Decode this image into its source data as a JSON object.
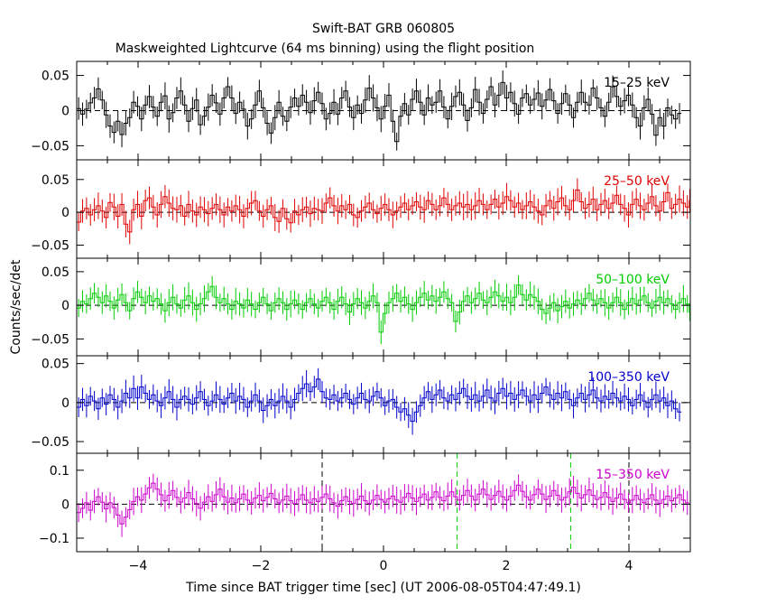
{
  "title": "Swift-BAT GRB 060805",
  "subtitle": "Maskweighted Lightcurve (64 ms binning) using the flight position",
  "xlabel": "Time since BAT trigger time [sec] (UT 2006-08-05T04:47:49.1)",
  "ylabel": "Counts/sec/det",
  "chart_data": {
    "type": "line",
    "title": "Swift-BAT GRB 060805",
    "subtitle": "Maskweighted Lightcurve (64 ms binning) using the flight position",
    "xlabel": "Time since BAT trigger time [sec] (UT 2006-08-05T04:47:49.1)",
    "ylabel": "Counts/sec/det",
    "xlim": [
      -5,
      5
    ],
    "x_ticks": [
      "−4",
      "−2",
      "0",
      "2",
      "4"
    ],
    "x_tick_values": [
      -4,
      -2,
      0,
      2,
      4
    ],
    "bin_width_s": 0.064,
    "panels": [
      {
        "name": "15–25 keV",
        "color": "#000000",
        "ylim": [
          -0.07,
          0.07
        ],
        "y_ticks": [
          "0.05",
          "0",
          "−0.05"
        ],
        "y_tick_values": [
          0.05,
          0,
          -0.05
        ],
        "vlines": [],
        "t_start": -5.0,
        "values": [
          0.003,
          -0.005,
          0.002,
          0.011,
          0.018,
          0.031,
          0.015,
          -0.006,
          -0.022,
          -0.031,
          -0.015,
          -0.034,
          -0.018,
          -0.01,
          0.012,
          0.006,
          -0.012,
          0.008,
          0.02,
          0.005,
          -0.008,
          0.012,
          0.021,
          -0.012,
          -0.003,
          0.018,
          0.028,
          0.008,
          -0.015,
          0.003,
          0.015,
          -0.02,
          -0.008,
          0.005,
          0.022,
          0.011,
          -0.005,
          0.018,
          0.034,
          0.018,
          -0.004,
          0.012,
          0.002,
          -0.022,
          -0.012,
          0.008,
          0.028,
          0.004,
          -0.018,
          -0.032,
          -0.01,
          0.012,
          -0.008,
          -0.015,
          0.005,
          0.018,
          0.006,
          0.022,
          0.012,
          -0.003,
          0.014,
          0.026,
          0.01,
          -0.012,
          -0.004,
          0.012,
          -0.005,
          0.018,
          0.028,
          0.005,
          -0.01,
          0.008,
          -0.004,
          0.015,
          0.032,
          0.018,
          0.004,
          -0.012,
          0.006,
          0.022,
          -0.015,
          -0.044,
          -0.008,
          0.01,
          -0.006,
          0.016,
          0.028,
          0.012,
          -0.006,
          0.018,
          0.008,
          0.012,
          0.028,
          0.005,
          -0.012,
          0.006,
          0.02,
          0.026,
          0.008,
          -0.014,
          0.004,
          0.03,
          0.012,
          -0.004,
          0.016,
          0.034,
          0.008,
          0.022,
          0.04,
          0.018,
          0.026,
          0.01,
          -0.005,
          0.018,
          0.024,
          0.008,
          0.016,
          0.025,
          0.006,
          0.015,
          0.03,
          0.014,
          -0.004,
          0.01,
          0.024,
          0.008,
          -0.01,
          0.012,
          0.026,
          0.012,
          0.008,
          0.032,
          0.018,
          0.004,
          -0.008,
          0.012,
          0.034,
          0.02,
          0.006,
          0.014,
          0.022,
          0.008,
          -0.01,
          -0.022,
          0.004,
          0.016,
          -0.005,
          -0.035,
          -0.01,
          -0.022,
          0.004,
          -0.006,
          -0.012,
          -0.004
        ]
      },
      {
        "name": "25–50 keV",
        "color": "#e00000",
        "ylim": [
          -0.07,
          0.08
        ],
        "y_ticks": [
          "0.05",
          "0",
          "−0.05"
        ],
        "y_tick_values": [
          0.05,
          0,
          -0.05
        ],
        "vlines": [],
        "t_start": -5.0,
        "values": [
          -0.015,
          0.002,
          0.006,
          -0.004,
          0.004,
          0.01,
          0.002,
          -0.008,
          0.015,
          0.008,
          -0.006,
          0.012,
          -0.018,
          -0.03,
          0.004,
          0.012,
          -0.006,
          0.018,
          0.022,
          0.008,
          -0.004,
          0.012,
          0.024,
          0.014,
          0.006,
          0.004,
          0.01,
          -0.006,
          0.012,
          0.002,
          -0.004,
          0.008,
          0.004,
          -0.002,
          0.006,
          0.012,
          0.004,
          -0.004,
          0.008,
          0.002,
          0.01,
          0.004,
          -0.006,
          0.006,
          0.014,
          0.018,
          0.002,
          -0.006,
          0.004,
          0.01,
          -0.008,
          -0.014,
          0.006,
          -0.01,
          -0.016,
          0.002,
          -0.004,
          0.004,
          0.008,
          -0.002,
          0.006,
          0.004,
          0.002,
          0.014,
          0.022,
          0.01,
          0.002,
          0.01,
          0.004,
          0.012,
          -0.004,
          -0.008,
          0.002,
          0.008,
          0.014,
          0.004,
          -0.002,
          0.006,
          0.012,
          0.004,
          -0.004,
          0.002,
          0.008,
          0.014,
          0.004,
          0.01,
          0.016,
          0.008,
          0.004,
          0.018,
          0.012,
          0.004,
          0.01,
          0.022,
          0.012,
          0.004,
          0.01,
          0.014,
          0.008,
          0.012,
          0.004,
          0.01,
          0.018,
          0.012,
          0.004,
          0.012,
          0.02,
          0.008,
          0.014,
          0.024,
          0.018,
          0.008,
          0.014,
          0.004,
          0.01,
          0.016,
          0.008,
          0.002,
          -0.004,
          0.01,
          0.018,
          0.006,
          0.016,
          0.022,
          0.01,
          0.004,
          0.018,
          0.034,
          0.016,
          0.006,
          0.012,
          0.02,
          0.004,
          0.012,
          0.018,
          0.006,
          0.014,
          0.026,
          0.012,
          0.006,
          -0.004,
          0.012,
          0.02,
          0.01,
          0.004,
          0.014,
          0.024,
          0.01,
          0.002,
          0.016,
          0.03,
          0.006,
          0.012,
          0.02,
          0.014,
          0.008,
          0.018
        ]
      },
      {
        "name": "50–100 keV",
        "color": "#00cc00",
        "ylim": [
          -0.075,
          0.07
        ],
        "y_ticks": [
          "0.05",
          "0",
          "−0.05"
        ],
        "y_tick_values": [
          0.05,
          0,
          -0.05
        ],
        "vlines": [],
        "t_start": -5.0,
        "values": [
          -0.004,
          0.006,
          0.002,
          0.01,
          0.018,
          0.012,
          0.004,
          0.014,
          0.006,
          -0.004,
          0.008,
          0.016,
          0.004,
          -0.008,
          0.01,
          0.02,
          0.012,
          0.004,
          0.014,
          0.006,
          0.01,
          0.002,
          -0.008,
          0.004,
          0.012,
          0.002,
          -0.004,
          0.008,
          0.014,
          0.004,
          -0.006,
          0.002,
          0.01,
          0.02,
          0.028,
          0.012,
          0.004,
          0.01,
          0.002,
          -0.006,
          0.006,
          0.002,
          -0.004,
          0.008,
          0.002,
          -0.006,
          0.004,
          0.012,
          0.002,
          -0.008,
          0.004,
          0.01,
          0.004,
          -0.006,
          0.002,
          0.008,
          0.002,
          -0.006,
          0.004,
          0.01,
          0.002,
          -0.004,
          0.006,
          0.012,
          0.004,
          -0.006,
          0.006,
          0.012,
          0.002,
          -0.01,
          0.002,
          0.01,
          0.004,
          -0.004,
          0.006,
          0.014,
          0.004,
          -0.04,
          -0.012,
          0.004,
          0.01,
          0.018,
          0.006,
          0.012,
          0.002,
          -0.006,
          0.004,
          0.012,
          0.018,
          0.008,
          0.014,
          0.006,
          0.012,
          0.02,
          0.01,
          0.004,
          -0.024,
          -0.01,
          0.006,
          0.014,
          0.004,
          0.01,
          0.018,
          0.008,
          0.004,
          0.012,
          0.02,
          0.014,
          0.006,
          0.012,
          0.004,
          0.012,
          0.03,
          0.016,
          0.008,
          0.016,
          0.012,
          0.006,
          -0.006,
          -0.012,
          -0.004,
          0.004,
          -0.008,
          -0.002,
          0.006,
          -0.004,
          0.002,
          0.008,
          0.002,
          0.01,
          0.018,
          0.008,
          0.002,
          0.01,
          0.004,
          -0.004,
          0.004,
          0.012,
          0.004,
          -0.006,
          0.004,
          0.01,
          0.002,
          0.008,
          0.014,
          0.004,
          -0.004,
          0.006,
          0.012,
          0.004,
          0.01,
          0.002,
          -0.006,
          0.004,
          0.01,
          0.002,
          -0.01
        ]
      },
      {
        "name": "100–350 keV",
        "color": "#0000cc",
        "ylim": [
          -0.065,
          0.06
        ],
        "y_ticks": [
          "0.05",
          "0",
          "−0.05"
        ],
        "y_tick_values": [
          0.05,
          0,
          -0.05
        ],
        "vlines": [],
        "t_start": -5.0,
        "values": [
          -0.006,
          0.004,
          -0.004,
          0.008,
          0.002,
          -0.008,
          0.006,
          -0.002,
          0.01,
          0.004,
          -0.006,
          0.002,
          0.012,
          0.006,
          0.018,
          0.006,
          0.02,
          0.012,
          0.004,
          0.01,
          0.002,
          -0.004,
          0.006,
          0.014,
          0.004,
          -0.006,
          0.004,
          0.008,
          0.004,
          -0.002,
          0.006,
          0.014,
          0.004,
          -0.004,
          0.002,
          0.01,
          0.004,
          -0.002,
          0.006,
          0.012,
          0.002,
          0.008,
          0.004,
          -0.006,
          0.002,
          0.01,
          0.002,
          -0.01,
          -0.004,
          0.004,
          -0.004,
          0.002,
          0.008,
          0.002,
          -0.006,
          0.004,
          0.012,
          0.018,
          0.024,
          0.014,
          0.02,
          0.03,
          0.014,
          0.006,
          0.004,
          0.01,
          0.002,
          0.006,
          0.012,
          0.004,
          -0.002,
          0.006,
          0.012,
          0.004,
          0.002,
          0.008,
          0.014,
          0.006,
          -0.004,
          0.002,
          0.004,
          -0.006,
          -0.012,
          -0.008,
          -0.016,
          -0.024,
          -0.012,
          -0.004,
          0.006,
          0.014,
          0.004,
          0.01,
          0.016,
          0.006,
          0.002,
          0.01,
          0.004,
          0.012,
          0.018,
          0.008,
          0.004,
          0.01,
          0.002,
          0.008,
          0.016,
          0.006,
          0.002,
          0.012,
          0.018,
          0.008,
          0.012,
          0.004,
          0.01,
          0.016,
          0.008,
          0.002,
          0.01,
          0.004,
          0.012,
          0.02,
          0.01,
          0.004,
          0.012,
          0.006,
          0.014,
          0.004,
          -0.004,
          0.006,
          0.012,
          0.004,
          0.01,
          0.016,
          0.006,
          0.002,
          0.008,
          0.004,
          0.012,
          0.006,
          0.002,
          0.008,
          0.004,
          -0.004,
          0.004,
          0.01,
          0.002,
          -0.006,
          0.004,
          0.01,
          0.002,
          0.006,
          -0.004,
          0.002,
          -0.008,
          -0.012
        ]
      },
      {
        "name": "15–350 keV",
        "color": "#cc00cc",
        "ylim": [
          -0.14,
          0.15
        ],
        "y_ticks": [
          "0.1",
          "0",
          "−0.1"
        ],
        "y_tick_values": [
          0.1,
          0,
          -0.1
        ],
        "vlines": [
          {
            "t": -1.0,
            "color": "#000000"
          },
          {
            "t": 4.0,
            "color": "#000000"
          },
          {
            "t": 1.2,
            "color": "#00cc00"
          },
          {
            "t": 3.05,
            "color": "#00cc00"
          }
        ],
        "t_start": -5.0,
        "values": [
          -0.025,
          -0.012,
          0.004,
          -0.018,
          0.008,
          0.022,
          0.006,
          -0.014,
          0.004,
          -0.01,
          -0.032,
          -0.058,
          -0.038,
          -0.016,
          0.008,
          0.022,
          0.012,
          0.03,
          0.048,
          0.062,
          0.044,
          0.028,
          0.01,
          0.026,
          0.04,
          0.02,
          0.006,
          0.018,
          0.034,
          0.016,
          0.002,
          -0.012,
          0.006,
          0.022,
          0.008,
          0.028,
          0.044,
          0.022,
          0.006,
          0.018,
          0.004,
          0.016,
          0.03,
          0.012,
          0.004,
          0.018,
          0.026,
          0.01,
          0.02,
          0.032,
          0.016,
          0.004,
          0.012,
          0.024,
          0.01,
          0.002,
          0.014,
          0.028,
          0.012,
          0.004,
          0.016,
          0.008,
          0.02,
          0.03,
          0.016,
          0.004,
          -0.006,
          0.01,
          0.022,
          0.008,
          0.002,
          0.014,
          0.024,
          0.01,
          0.002,
          0.012,
          0.026,
          0.014,
          0.006,
          0.016,
          0.024,
          0.012,
          0.006,
          0.02,
          0.032,
          0.018,
          0.008,
          0.02,
          0.03,
          0.012,
          0.02,
          0.036,
          0.02,
          0.01,
          0.024,
          0.036,
          0.022,
          0.012,
          0.026,
          0.04,
          0.024,
          0.012,
          0.03,
          0.044,
          0.028,
          0.014,
          0.026,
          0.038,
          0.022,
          0.012,
          0.024,
          0.04,
          0.056,
          0.038,
          0.022,
          0.012,
          0.028,
          0.044,
          0.03,
          0.014,
          0.024,
          0.04,
          0.026,
          0.012,
          0.02,
          0.036,
          0.05,
          0.032,
          0.018,
          0.028,
          0.042,
          0.026,
          0.014,
          0.02,
          0.034,
          0.02,
          0.008,
          0.018,
          0.03,
          0.014,
          0.004,
          0.012,
          0.026,
          0.014,
          0.004,
          0.016,
          0.028,
          0.012,
          0.002,
          0.014,
          0.024,
          0.01,
          0.018,
          0.028,
          0.012,
          0.004
        ]
      }
    ]
  }
}
